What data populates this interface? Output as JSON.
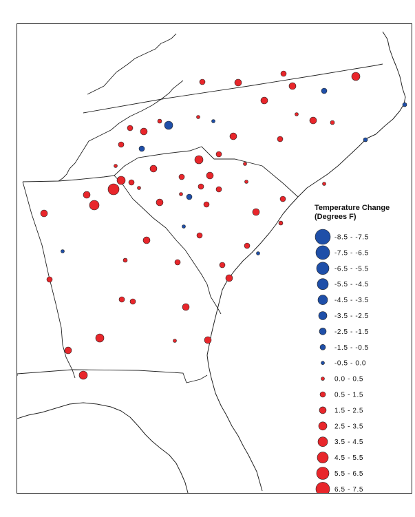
{
  "legend": {
    "title_line1": "Temperature Change",
    "title_line2": "(Degrees F)",
    "entries": [
      {
        "label": "-8.5 - -7.5",
        "color": "#1f4fa8",
        "r": 11
      },
      {
        "label": "-7.5 - -6.5",
        "color": "#1f4fa8",
        "r": 10
      },
      {
        "label": "-6.5 - -5.5",
        "color": "#1f4fa8",
        "r": 9
      },
      {
        "label": "-5.5 - -4.5",
        "color": "#1f4fa8",
        "r": 8
      },
      {
        "label": "-4.5 - -3.5",
        "color": "#1f4fa8",
        "r": 7
      },
      {
        "label": "-3.5 - -2.5",
        "color": "#1f4fa8",
        "r": 6
      },
      {
        "label": "-2.5 - -1.5",
        "color": "#1f4fa8",
        "r": 5
      },
      {
        "label": "-1.5 - -0.5",
        "color": "#1f4fa8",
        "r": 4
      },
      {
        "label": "-0.5 - 0.0",
        "color": "#1f4fa8",
        "r": 2.5
      },
      {
        "label": "0.0 - 0.5",
        "color": "#e8262b",
        "r": 2.5
      },
      {
        "label": "0.5 - 1.5",
        "color": "#e8262b",
        "r": 4
      },
      {
        "label": "1.5 - 2.5",
        "color": "#e8262b",
        "r": 5
      },
      {
        "label": "2.5 - 3.5",
        "color": "#e8262b",
        "r": 6
      },
      {
        "label": "3.5 - 4.5",
        "color": "#e8262b",
        "r": 7
      },
      {
        "label": "4.5 - 5.5",
        "color": "#e8262b",
        "r": 8
      },
      {
        "label": "5.5 - 6.5",
        "color": "#e8262b",
        "r": 9
      },
      {
        "label": "6.5 - 7.5",
        "color": "#e8262b",
        "r": 10
      }
    ]
  }
}
